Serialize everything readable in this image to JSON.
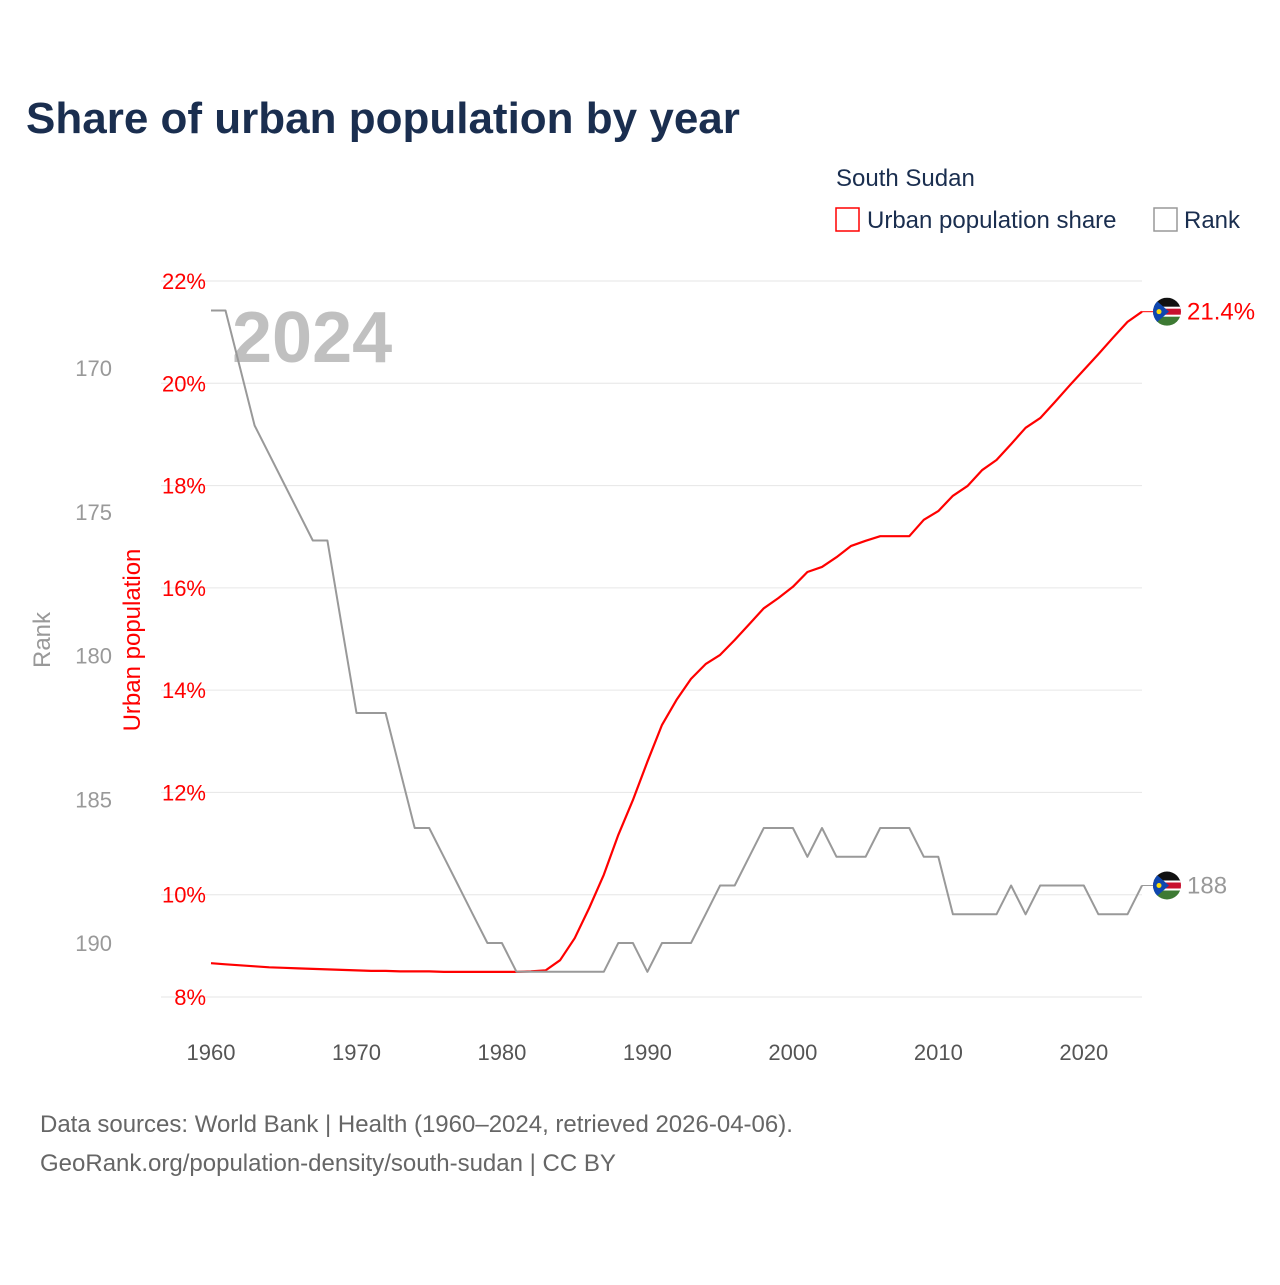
{
  "chart_data": {
    "type": "line",
    "title": "Share of urban population by year",
    "watermark_year": "2024",
    "legend": {
      "title": "South Sudan",
      "placement": "top-right",
      "entries": [
        "Urban population share",
        "Rank"
      ]
    },
    "ylabel_left": "Urban population",
    "ylabel_rank": "Rank",
    "x": [
      1960,
      1961,
      1962,
      1963,
      1964,
      1965,
      1966,
      1967,
      1968,
      1969,
      1970,
      1971,
      1972,
      1973,
      1974,
      1975,
      1976,
      1977,
      1978,
      1979,
      1980,
      1981,
      1982,
      1983,
      1984,
      1985,
      1986,
      1987,
      1988,
      1989,
      1990,
      1991,
      1992,
      1993,
      1994,
      1995,
      1996,
      1997,
      1998,
      1999,
      2000,
      2001,
      2002,
      2003,
      2004,
      2005,
      2006,
      2007,
      2008,
      2009,
      2010,
      2011,
      2012,
      2013,
      2014,
      2015,
      2016,
      2017,
      2018,
      2019,
      2020,
      2021,
      2022,
      2023,
      2024
    ],
    "series": [
      {
        "name": "Urban population share",
        "color": "#ff0000",
        "axis": "percent",
        "values": [
          8.66,
          8.64,
          8.62,
          8.6,
          8.58,
          8.57,
          8.56,
          8.55,
          8.54,
          8.53,
          8.52,
          8.51,
          8.51,
          8.5,
          8.5,
          8.5,
          8.49,
          8.49,
          8.49,
          8.49,
          8.49,
          8.49,
          8.5,
          8.52,
          8.72,
          9.15,
          9.74,
          10.39,
          11.17,
          11.85,
          12.6,
          13.32,
          13.81,
          14.22,
          14.51,
          14.69,
          14.98,
          15.29,
          15.6,
          15.8,
          16.02,
          16.31,
          16.41,
          16.6,
          16.82,
          16.92,
          17.01,
          17.01,
          17.01,
          17.33,
          17.5,
          17.8,
          17.99,
          18.3,
          18.5,
          18.81,
          19.13,
          19.32,
          19.63,
          19.95,
          20.26,
          20.57,
          20.89,
          21.2,
          21.4
        ],
        "end_label": "21.4%"
      },
      {
        "name": "Rank",
        "color": "#999999",
        "axis": "rank",
        "values": [
          168,
          168,
          170,
          172,
          173,
          174,
          175,
          176,
          176,
          179,
          182,
          182,
          182,
          184,
          186,
          186,
          187,
          188,
          189,
          190,
          190,
          191,
          191,
          191,
          191,
          191,
          191,
          191,
          190,
          190,
          191,
          190,
          190,
          190,
          189,
          188,
          188,
          187,
          186,
          186,
          186,
          187,
          186,
          187,
          187,
          187,
          186,
          186,
          186,
          187,
          187,
          189,
          189,
          189,
          189,
          188,
          189,
          188,
          188,
          188,
          188,
          189,
          189,
          189,
          188
        ],
        "end_label": "188"
      }
    ],
    "xticks": [
      "1960",
      "1970",
      "1980",
      "1990",
      "2000",
      "2010",
      "2020"
    ],
    "xlim": [
      1960,
      2024
    ],
    "ylim_percent": [
      8,
      22
    ],
    "yticks_percent": [
      "8%",
      "10%",
      "12%",
      "14%",
      "16%",
      "18%",
      "20%",
      "22%"
    ],
    "ylim_rank": [
      167,
      192
    ],
    "yticks_rank": [
      "170",
      "175",
      "180",
      "185",
      "190"
    ],
    "grid": true
  },
  "footer": {
    "line1": "Data sources: World Bank | Health (1960–2024, retrieved 2026-04-06).",
    "line2": "GeoRank.org/population-density/south-sudan | CC BY"
  }
}
